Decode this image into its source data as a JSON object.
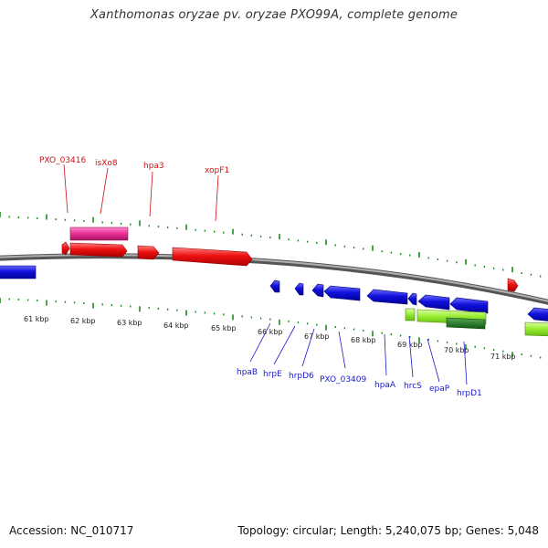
{
  "title": "Xanthomonas oryzae pv. oryzae PXO99A, complete genome",
  "footer": {
    "accession": "Accession: NC_010717",
    "summary": "Topology: circular; Length: 5,240,075 bp; Genes: 5,048"
  },
  "scale_labels": [
    "61 kbp",
    "62 kbp",
    "63 kbp",
    "64 kbp",
    "65 kbp",
    "66 kbp",
    "67 kbp",
    "68 kbp",
    "69 kbp",
    "70 kbp",
    "71 kbp"
  ],
  "forward_gene_labels": [
    "PXO_03416",
    "isXo8",
    "hpa3",
    "xopF1"
  ],
  "reverse_gene_labels": [
    "hpaB",
    "hrpE",
    "hrpD6",
    "PXO_03409",
    "hpaA",
    "hrcS",
    "epaP",
    "hrpD1"
  ],
  "colors": {
    "forward_gene": "#ee1111",
    "reverse_gene": "#1111dd",
    "mobile_element": "#ee3399",
    "rna_feature": "#99ee33",
    "rna_feature_dark": "#228822",
    "backbone": "#808080",
    "tick": "#1a8a1a"
  }
}
